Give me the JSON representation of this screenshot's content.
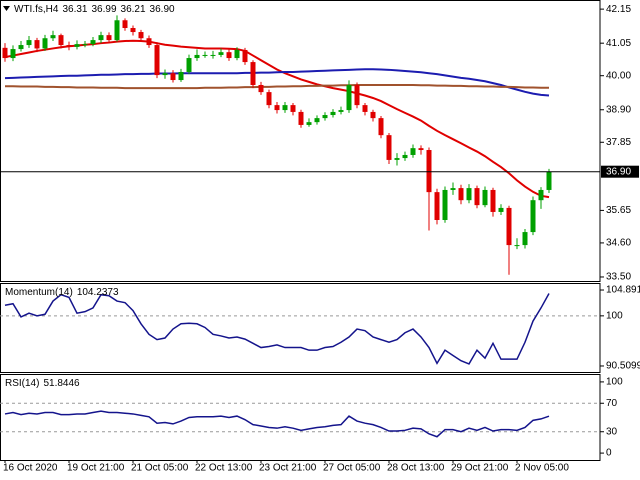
{
  "chart_data": [
    {
      "type": "candlestick",
      "title": "WTI.fs,H4",
      "quote_labels": [
        "36.31",
        "36.99",
        "36.21",
        "36.90"
      ],
      "categories": [
        "16 Oct 2020",
        null,
        null,
        null,
        null,
        null,
        null,
        null,
        "19 Oct 21:00",
        null,
        null,
        null,
        null,
        null,
        null,
        null,
        "21 Oct 05:00",
        null,
        null,
        null,
        null,
        null,
        null,
        null,
        "22 Oct 13:00",
        null,
        null,
        null,
        null,
        null,
        null,
        null,
        "23 Oct 21:00",
        null,
        null,
        null,
        null,
        null,
        null,
        null,
        "27 Oct 05:00",
        null,
        null,
        null,
        null,
        null,
        null,
        null,
        "28 Oct 13:00",
        null,
        null,
        null,
        null,
        null,
        null,
        null,
        "29 Oct 21:00",
        null,
        null,
        null,
        null,
        null,
        null,
        null,
        "2 Nov 05:00",
        null,
        null,
        null,
        null
      ],
      "open": [
        40.9,
        40.57,
        40.86,
        40.99,
        41.15,
        40.88,
        41.21,
        41.31,
        40.99,
        40.93,
        41.02,
        41.02,
        41.15,
        41.31,
        41.15,
        41.79,
        41.54,
        41.41,
        41.21,
        40.99,
        40.02,
        40.08,
        39.86,
        40.12,
        40.57,
        40.67,
        40.67,
        40.67,
        40.76,
        40.57,
        40.83,
        40.44,
        39.7,
        39.47,
        39.05,
        38.89,
        39.05,
        38.83,
        38.41,
        38.5,
        38.63,
        38.73,
        38.83,
        38.89,
        39.7,
        39.05,
        38.83,
        38.63,
        38.08,
        37.28,
        37.34,
        37.44,
        37.66,
        37.6,
        36.24,
        35.34,
        36.31,
        36.37,
        35.98,
        36.37,
        35.82,
        36.31,
        35.6,
        35.73,
        34.53,
        34.53,
        34.95,
        35.98,
        36.31
      ],
      "high": [
        41.05,
        40.98,
        41.12,
        41.28,
        41.22,
        41.32,
        41.45,
        41.36,
        41.1,
        41.14,
        41.12,
        41.25,
        41.42,
        41.4,
        41.95,
        41.85,
        41.62,
        41.48,
        41.3,
        41.08,
        40.2,
        40.18,
        40.22,
        40.68,
        40.85,
        40.78,
        40.8,
        40.88,
        40.85,
        40.92,
        40.9,
        40.5,
        39.8,
        39.55,
        39.15,
        39.15,
        39.12,
        38.9,
        38.62,
        38.72,
        38.82,
        38.92,
        39.0,
        39.85,
        39.78,
        39.12,
        38.9,
        38.7,
        38.15,
        37.5,
        37.55,
        37.78,
        37.75,
        37.68,
        36.35,
        36.42,
        36.55,
        36.48,
        36.5,
        36.45,
        36.42,
        36.38,
        35.85,
        35.8,
        34.75,
        35.05,
        36.1,
        36.4,
        36.99
      ],
      "low": [
        40.45,
        40.47,
        40.78,
        40.9,
        40.76,
        40.8,
        41.12,
        40.88,
        40.82,
        40.85,
        40.92,
        40.95,
        41.05,
        41.05,
        41.1,
        41.45,
        41.3,
        41.12,
        40.9,
        39.92,
        39.9,
        39.78,
        39.8,
        40.05,
        40.48,
        40.58,
        40.55,
        40.6,
        40.48,
        40.5,
        40.35,
        39.6,
        39.38,
        38.95,
        38.78,
        38.8,
        38.72,
        38.32,
        38.35,
        38.42,
        38.55,
        38.65,
        38.75,
        38.8,
        38.95,
        38.72,
        38.52,
        37.98,
        37.15,
        37.1,
        37.25,
        37.35,
        37.45,
        35.0,
        35.2,
        35.25,
        36.15,
        35.85,
        35.88,
        35.72,
        35.75,
        35.45,
        35.5,
        33.57,
        34.4,
        34.42,
        34.85,
        35.7,
        36.21
      ],
      "close": [
        40.57,
        40.86,
        40.99,
        41.15,
        40.88,
        41.21,
        41.31,
        40.99,
        40.93,
        41.02,
        41.02,
        41.15,
        41.31,
        41.15,
        41.79,
        41.54,
        41.41,
        41.21,
        40.99,
        40.02,
        40.08,
        39.86,
        40.12,
        40.57,
        40.67,
        40.67,
        40.67,
        40.76,
        40.57,
        40.83,
        40.44,
        39.7,
        39.47,
        39.05,
        38.89,
        39.05,
        38.83,
        38.41,
        38.5,
        38.63,
        38.73,
        38.83,
        38.89,
        39.7,
        39.05,
        38.83,
        38.63,
        38.08,
        37.28,
        37.34,
        37.44,
        37.66,
        37.6,
        36.24,
        35.34,
        36.31,
        36.37,
        35.98,
        36.37,
        35.82,
        36.31,
        35.6,
        35.73,
        34.53,
        34.53,
        34.95,
        35.98,
        36.31,
        36.9
      ],
      "up_color": "#00a000",
      "down_color": "#e00000",
      "lines": [
        {
          "color": "#e00000",
          "values": [
            40.6,
            40.65,
            40.7,
            40.75,
            40.8,
            40.84,
            40.88,
            40.92,
            40.95,
            40.97,
            41.0,
            41.02,
            41.05,
            41.07,
            41.1,
            41.12,
            41.13,
            41.12,
            41.1,
            41.05,
            41.0,
            40.97,
            40.94,
            40.92,
            40.9,
            40.88,
            40.88,
            40.88,
            40.87,
            40.86,
            40.8,
            40.65,
            40.5,
            40.35,
            40.2,
            40.08,
            39.98,
            39.88,
            39.8,
            39.72,
            39.66,
            39.6,
            39.55,
            39.5,
            39.43,
            39.36,
            39.28,
            39.18,
            39.05,
            38.92,
            38.8,
            38.68,
            38.55,
            38.38,
            38.22,
            38.08,
            37.95,
            37.82,
            37.68,
            37.55,
            37.4,
            37.22,
            37.05,
            36.85,
            36.62,
            36.42,
            36.25,
            36.12,
            36.08
          ]
        },
        {
          "color": "#1c1cb0",
          "values": [
            39.92,
            39.93,
            39.94,
            39.95,
            39.96,
            39.97,
            39.98,
            39.99,
            40.0,
            40.0,
            40.01,
            40.02,
            40.03,
            40.03,
            40.04,
            40.05,
            40.05,
            40.06,
            40.06,
            40.07,
            40.07,
            40.07,
            40.08,
            40.08,
            40.08,
            40.08,
            40.08,
            40.08,
            40.08,
            40.08,
            40.09,
            40.09,
            40.1,
            40.1,
            40.11,
            40.12,
            40.12,
            40.13,
            40.14,
            40.15,
            40.16,
            40.17,
            40.18,
            40.19,
            40.2,
            40.21,
            40.21,
            40.2,
            40.19,
            40.17,
            40.15,
            40.13,
            40.11,
            40.08,
            40.05,
            40.01,
            39.97,
            39.93,
            39.9,
            39.86,
            39.82,
            39.76,
            39.7,
            39.62,
            39.55,
            39.48,
            39.42,
            39.38,
            39.36
          ]
        },
        {
          "color": "#a0522d",
          "values": [
            39.66,
            39.66,
            39.65,
            39.65,
            39.65,
            39.64,
            39.64,
            39.63,
            39.63,
            39.62,
            39.62,
            39.62,
            39.61,
            39.61,
            39.61,
            39.6,
            39.6,
            39.6,
            39.6,
            39.6,
            39.6,
            39.6,
            39.6,
            39.6,
            39.6,
            39.61,
            39.61,
            39.61,
            39.62,
            39.62,
            39.63,
            39.63,
            39.64,
            39.64,
            39.65,
            39.65,
            39.66,
            39.66,
            39.67,
            39.67,
            39.68,
            39.68,
            39.69,
            39.69,
            39.7,
            39.7,
            39.7,
            39.7,
            39.7,
            39.7,
            39.7,
            39.7,
            39.69,
            39.69,
            39.68,
            39.68,
            39.67,
            39.67,
            39.66,
            39.66,
            39.65,
            39.65,
            39.64,
            39.64,
            39.63,
            39.62,
            39.62,
            39.61,
            39.61
          ]
        }
      ],
      "ylim": [
        33.37,
        42.38
      ],
      "yticks": [
        42.15,
        41.05,
        {
          "value": 40,
          "label": "40.00"
        },
        {
          "value": 38.9,
          "label": "38.90"
        },
        37.85,
        35.65,
        {
          "value": 34.6,
          "label": "34.60"
        },
        {
          "value": 33.5,
          "label": "33.50"
        }
      ],
      "last_price": {
        "value": 36.9,
        "label": "36.90"
      }
    },
    {
      "type": "line",
      "title": "Momentum(14)",
      "color": "#14148c",
      "values": [
        102.0,
        102.3,
        99.8,
        100.5,
        100.0,
        100.3,
        102.8,
        104.0,
        103.5,
        100.5,
        100.8,
        101.5,
        104.0,
        103.8,
        102.8,
        102.5,
        101.0,
        98.5,
        96.5,
        95.5,
        95.8,
        97.5,
        98.5,
        98.6,
        98.5,
        97.8,
        96.5,
        96.2,
        95.8,
        96.0,
        95.6,
        94.8,
        94.0,
        94.2,
        94.5,
        94.0,
        94.0,
        94.0,
        93.5,
        93.5,
        94.0,
        94.2,
        95.0,
        96.0,
        97.5,
        97.2,
        96.0,
        95.5,
        95.0,
        95.5,
        96.8,
        97.5,
        96.0,
        94.0,
        91.0,
        93.5,
        92.5,
        91.5,
        90.9,
        93.5,
        92.0,
        94.8,
        91.8,
        91.8,
        91.8,
        95.0,
        99.0,
        101.5,
        104.2373
      ],
      "ylim": [
        89.37,
        106.03
      ],
      "yticks": [
        104.891,
        100,
        90.5099
      ],
      "levels": [
        100
      ]
    },
    {
      "type": "line",
      "title": "RSI(14)",
      "color": "#14148c",
      "values": [
        55,
        57,
        54,
        56,
        55,
        57,
        57,
        54,
        54,
        55,
        55,
        57,
        59,
        57,
        57,
        56,
        55,
        53,
        51,
        42,
        43,
        41,
        45,
        50,
        51,
        51,
        51,
        52,
        50,
        52,
        47,
        40,
        38,
        36,
        35,
        37,
        35,
        32,
        34,
        36,
        37,
        39,
        40,
        52,
        45,
        42,
        40,
        36,
        31,
        31,
        32,
        35,
        34,
        27,
        23,
        33,
        33,
        30,
        35,
        32,
        36,
        31,
        33,
        33,
        32,
        36,
        46,
        48,
        51.8446
      ],
      "ylim": [
        -9.7,
        109.7
      ],
      "yticks": [
        100,
        70,
        30,
        0
      ],
      "levels": [
        70,
        30
      ]
    }
  ]
}
